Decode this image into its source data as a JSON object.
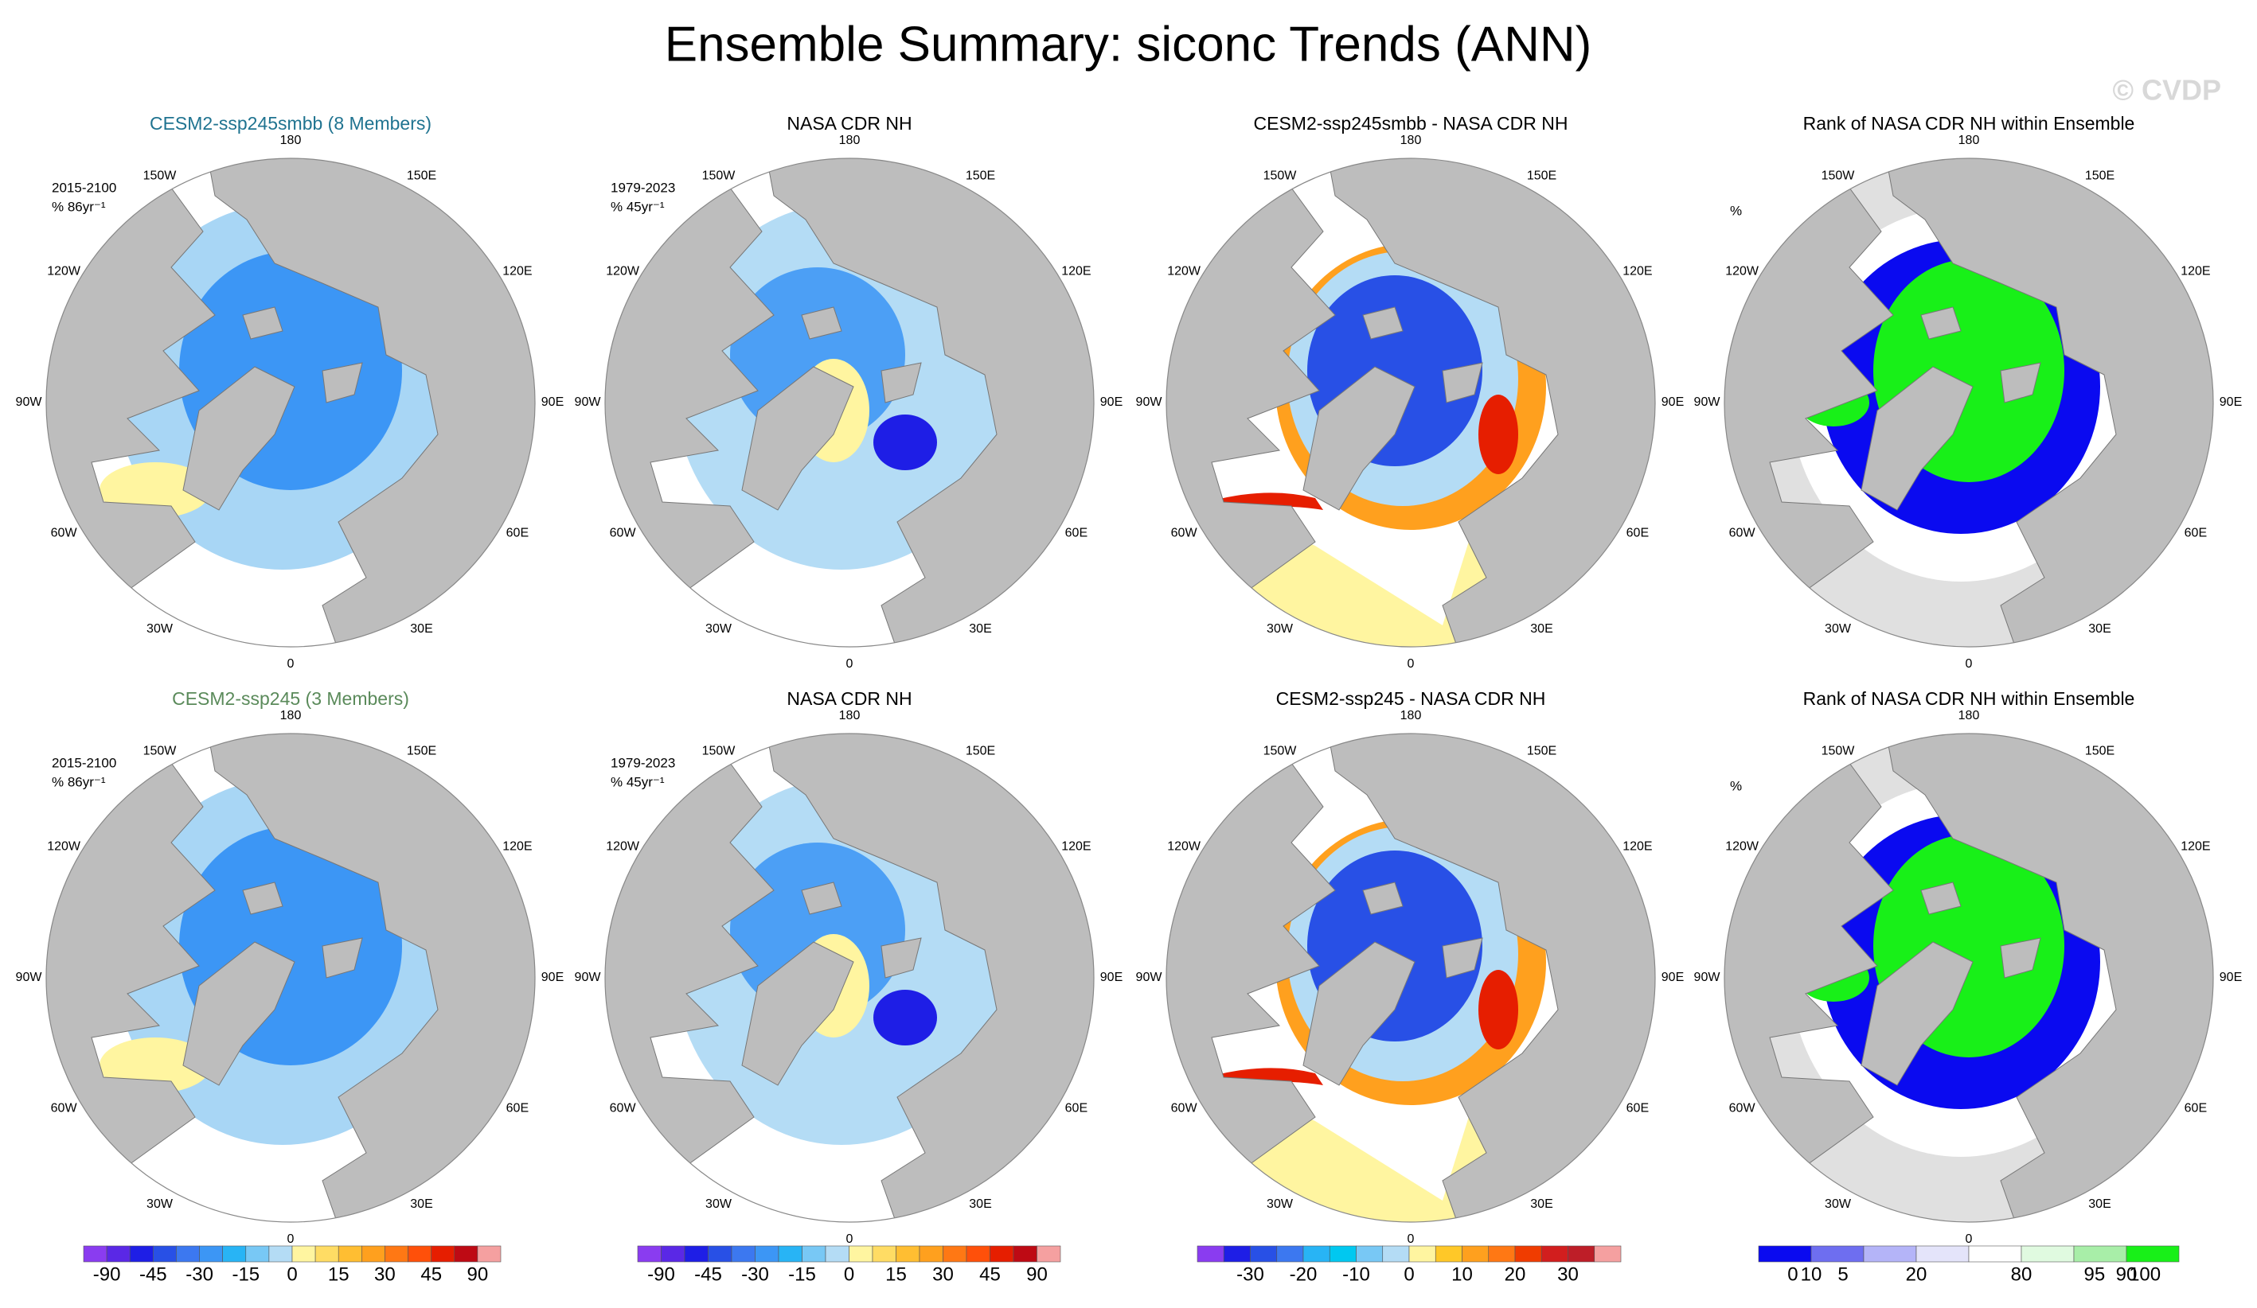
{
  "title": "Ensemble Summary: siconc Trends (ANN)",
  "watermark": "© CVDP",
  "longitude_labels": [
    "0",
    "30E",
    "60E",
    "90E",
    "120E",
    "150E",
    "180",
    "150W",
    "120W",
    "90W",
    "60W",
    "30W"
  ],
  "panels": [
    {
      "title": "CESM2-ssp245smbb (8 Members)",
      "title_color": "#1f7390",
      "period": "2015-2100",
      "units": "% 86yr⁻¹"
    },
    {
      "title": "NASA CDR NH",
      "title_color": "#000000",
      "period": "1979-2023",
      "units": "% 45yr⁻¹"
    },
    {
      "title": "CESM2-ssp245smbb - NASA CDR NH",
      "title_color": "#000000"
    },
    {
      "title": "Rank of NASA CDR NH within Ensemble",
      "title_color": "#000000",
      "units": "%"
    },
    {
      "title": "CESM2-ssp245 (3 Members)",
      "title_color": "#5a8a5a",
      "period": "2015-2100",
      "units": "% 86yr⁻¹"
    },
    {
      "title": "NASA CDR NH",
      "title_color": "#000000",
      "period": "1979-2023",
      "units": "% 45yr⁻¹"
    },
    {
      "title": "CESM2-ssp245 - NASA CDR NH",
      "title_color": "#000000"
    },
    {
      "title": "Rank of NASA CDR NH within Ensemble",
      "title_color": "#000000",
      "units": "%"
    }
  ],
  "colorbars": [
    {
      "colors": [
        "#8a3cf0",
        "#5a28e6",
        "#1e1ee6",
        "#2850e6",
        "#3c78f0",
        "#3c96f5",
        "#28b4f5",
        "#78c8f5",
        "#b4dcf5",
        "#fff5a0",
        "#ffdc64",
        "#ffbe32",
        "#ffa01e",
        "#ff7814",
        "#ff500a",
        "#e61e00",
        "#be0a14",
        "#f5a0a0"
      ],
      "ticks": [
        -90,
        -45,
        -30,
        -15,
        0,
        15,
        30,
        45,
        90
      ]
    },
    {
      "colors": [
        "#8a3cf0",
        "#5a28e6",
        "#1e1ee6",
        "#2850e6",
        "#3c78f0",
        "#3c96f5",
        "#28b4f5",
        "#78c8f5",
        "#b4dcf5",
        "#fff5a0",
        "#ffdc64",
        "#ffbe32",
        "#ffa01e",
        "#ff7814",
        "#ff500a",
        "#e61e00",
        "#be0a14",
        "#f5a0a0"
      ],
      "ticks": [
        -90,
        -45,
        -30,
        -15,
        0,
        15,
        30,
        45,
        90
      ]
    },
    {
      "colors": [
        "#8a3cf0",
        "#1e1ee6",
        "#2850e6",
        "#3c78f0",
        "#28b4f5",
        "#00c8f0",
        "#78c8f5",
        "#b4dcf5",
        "#fff5a0",
        "#ffc828",
        "#ffa01e",
        "#ff7814",
        "#f03c00",
        "#d21e1e",
        "#be1e28",
        "#f5a0a0"
      ],
      "ticks": [
        -30,
        -20,
        -10,
        0,
        10,
        20,
        30
      ]
    },
    {
      "colors": [
        "#0a0af0",
        "#6e6ef0",
        "#b4b4f8",
        "#e4e4fa",
        "#ffffff",
        "#e0fae0",
        "#a8eea8",
        "#18f018"
      ],
      "ticks": [
        0,
        5,
        10,
        20,
        80,
        90,
        95,
        100
      ]
    }
  ]
}
